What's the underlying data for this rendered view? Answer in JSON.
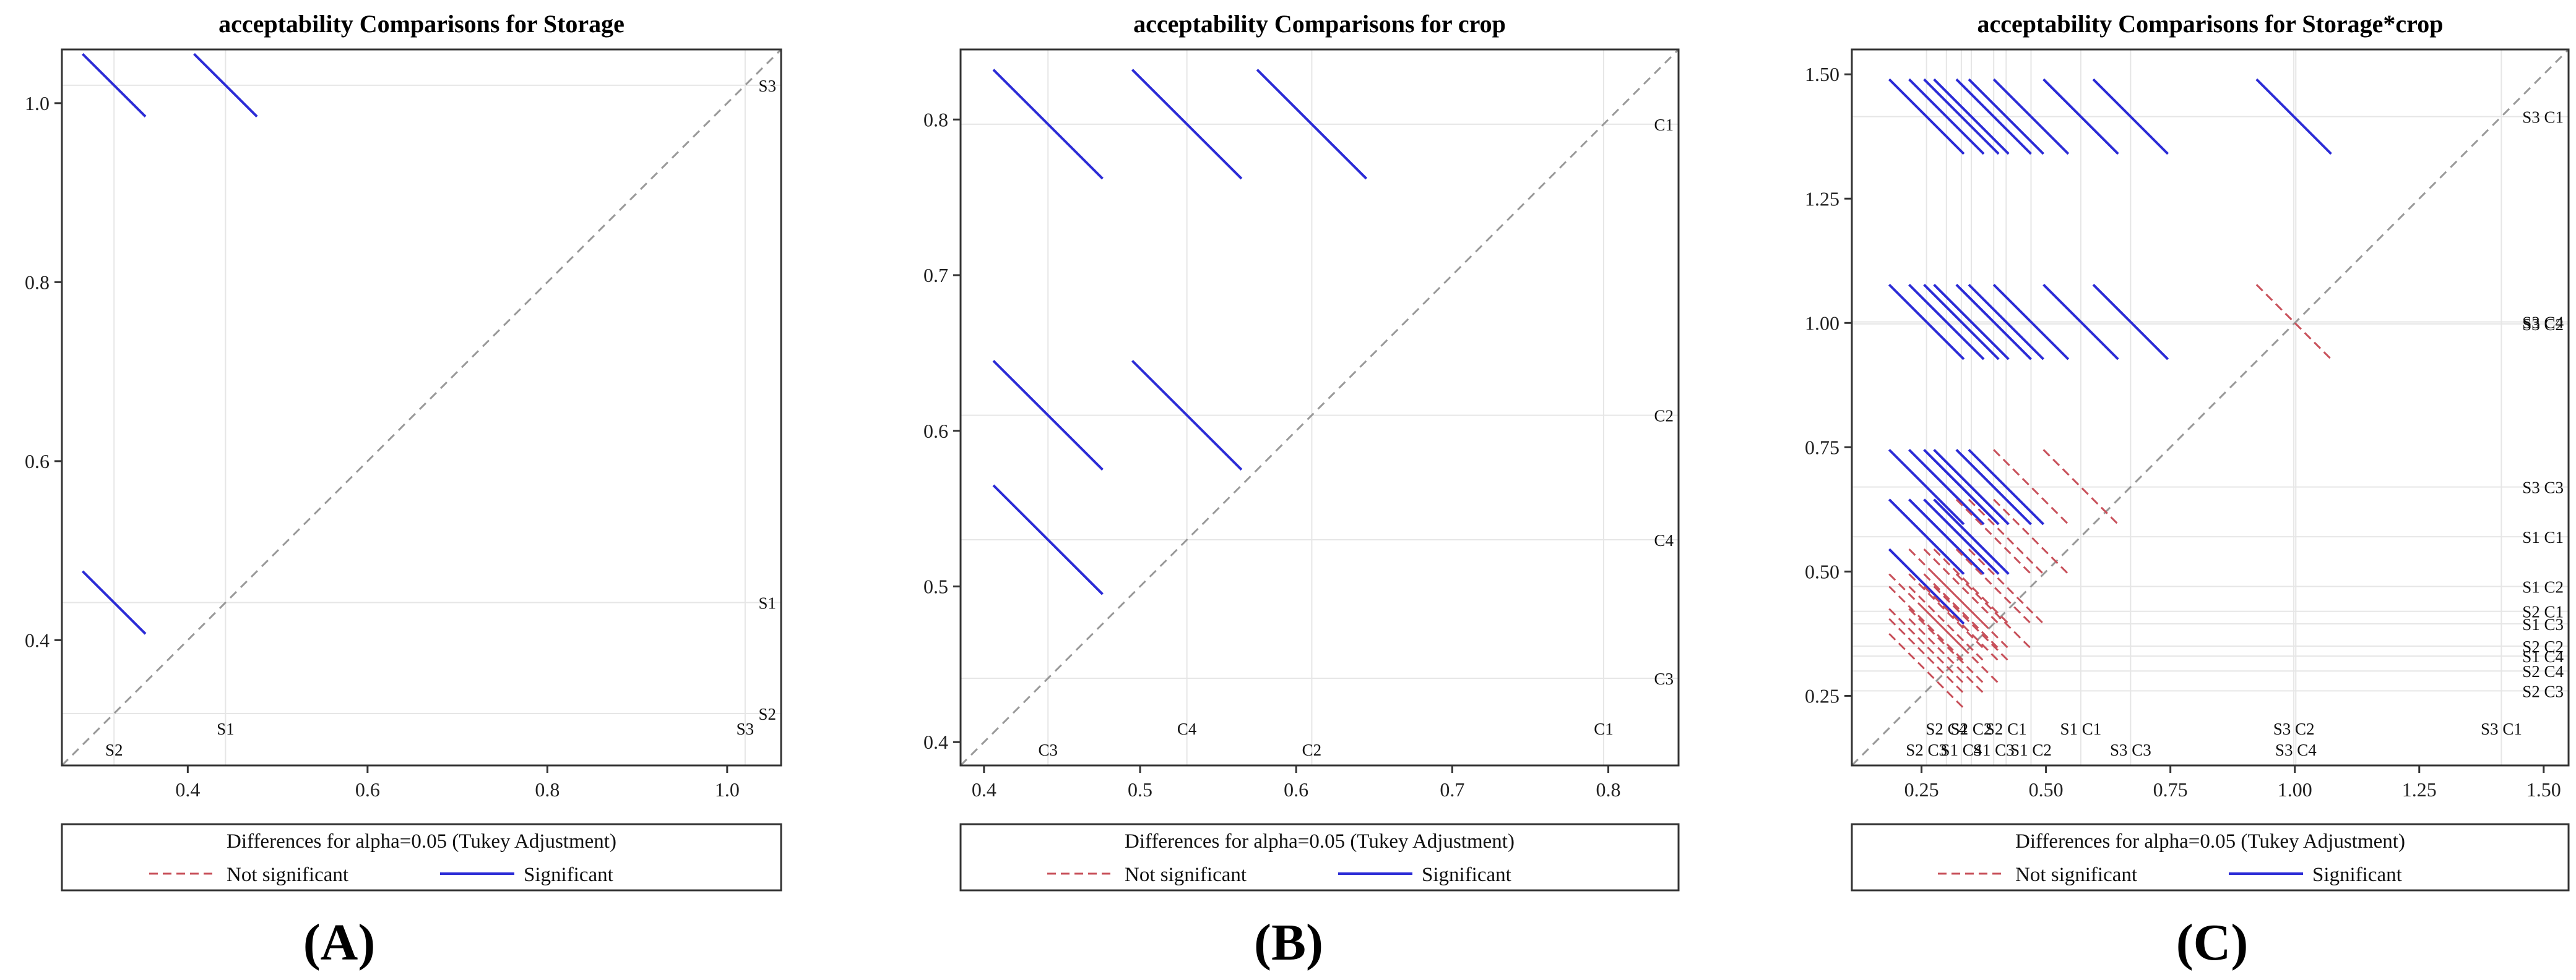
{
  "legend": {
    "title": "Differences for alpha=0.05 (Tukey Adjustment)",
    "not_significant": "Not significant",
    "significant": "Significant"
  },
  "colors": {
    "significant": "#2b2bd6",
    "not_significant": "#c8505a",
    "diagonal": "#999999",
    "refline": "#e6e6e6"
  },
  "chart_data": [
    {
      "type": "diffogram",
      "panel_label": "(A)",
      "title": "acceptability Comparisons for Storage",
      "xlim": [
        0.26,
        1.06
      ],
      "ylim": [
        0.26,
        1.06
      ],
      "xticks": [
        0.4,
        0.6,
        0.8,
        1.0
      ],
      "yticks": [
        0.4,
        0.6,
        0.8,
        1.0
      ],
      "tick_labels": [
        "0.4",
        "0.6",
        "0.8",
        "1.0"
      ],
      "levels": [
        {
          "name": "S1",
          "mean": 0.442
        },
        {
          "name": "S2",
          "mean": 0.318
        },
        {
          "name": "S3",
          "mean": 1.02
        }
      ],
      "comparisons": [
        {
          "a": "S1",
          "b": "S3",
          "significant": true,
          "half": 0.035
        },
        {
          "a": "S2",
          "b": "S3",
          "significant": true,
          "half": 0.035
        },
        {
          "a": "S2",
          "b": "S1",
          "significant": true,
          "half": 0.035
        }
      ]
    },
    {
      "type": "diffogram",
      "panel_label": "(B)",
      "title": "acceptability Comparisons for crop",
      "xlim": [
        0.385,
        0.845
      ],
      "ylim": [
        0.385,
        0.845
      ],
      "xticks": [
        0.4,
        0.5,
        0.6,
        0.7,
        0.8
      ],
      "yticks": [
        0.4,
        0.5,
        0.6,
        0.7,
        0.8
      ],
      "tick_labels": [
        "0.4",
        "0.5",
        "0.6",
        "0.7",
        "0.8"
      ],
      "levels": [
        {
          "name": "C1",
          "mean": 0.797
        },
        {
          "name": "C2",
          "mean": 0.61
        },
        {
          "name": "C4",
          "mean": 0.53
        },
        {
          "name": "C3",
          "mean": 0.441
        }
      ],
      "comparisons": [
        {
          "a": "C3",
          "b": "C1",
          "significant": true,
          "half": 0.035
        },
        {
          "a": "C4",
          "b": "C1",
          "significant": true,
          "half": 0.035
        },
        {
          "a": "C2",
          "b": "C1",
          "significant": true,
          "half": 0.035
        },
        {
          "a": "C3",
          "b": "C2",
          "significant": true,
          "half": 0.035
        },
        {
          "a": "C4",
          "b": "C2",
          "significant": true,
          "half": 0.035
        },
        {
          "a": "C3",
          "b": "C4",
          "significant": true,
          "half": 0.035
        }
      ]
    },
    {
      "type": "diffogram",
      "panel_label": "(C)",
      "title": "acceptability Comparisons for Storage*crop",
      "xlim": [
        0.11,
        1.55
      ],
      "ylim": [
        0.11,
        1.55
      ],
      "xticks": [
        0.25,
        0.5,
        0.75,
        1.0,
        1.25,
        1.5
      ],
      "yticks": [
        0.25,
        0.5,
        0.75,
        1.0,
        1.25,
        1.5
      ],
      "tick_labels": [
        "0.25",
        "0.50",
        "0.75",
        "1.00",
        "1.25",
        "1.50"
      ],
      "levels": [
        {
          "name": "S3 C1",
          "mean": 1.415
        },
        {
          "name": "S3 C4",
          "mean": 1.002
        },
        {
          "name": "S3 C2",
          "mean": 0.998
        },
        {
          "name": "S3 C3",
          "mean": 0.67
        },
        {
          "name": "S1 C1",
          "mean": 0.57
        },
        {
          "name": "S1 C2",
          "mean": 0.47
        },
        {
          "name": "S2 C1",
          "mean": 0.42
        },
        {
          "name": "S1 C3",
          "mean": 0.395
        },
        {
          "name": "S2 C2",
          "mean": 0.35
        },
        {
          "name": "S1 C4",
          "mean": 0.33
        },
        {
          "name": "S2 C4",
          "mean": 0.3
        },
        {
          "name": "S2 C3",
          "mean": 0.26
        }
      ],
      "comparisons": [
        {
          "a": "S2 C3",
          "b": "S3 C1",
          "significant": true,
          "half": 0.075
        },
        {
          "a": "S2 C4",
          "b": "S3 C1",
          "significant": true,
          "half": 0.075
        },
        {
          "a": "S1 C4",
          "b": "S3 C1",
          "significant": true,
          "half": 0.075
        },
        {
          "a": "S2 C2",
          "b": "S3 C1",
          "significant": true,
          "half": 0.075
        },
        {
          "a": "S1 C3",
          "b": "S3 C1",
          "significant": true,
          "half": 0.075
        },
        {
          "a": "S2 C1",
          "b": "S3 C1",
          "significant": true,
          "half": 0.075
        },
        {
          "a": "S1 C2",
          "b": "S3 C1",
          "significant": true,
          "half": 0.075
        },
        {
          "a": "S1 C1",
          "b": "S3 C1",
          "significant": true,
          "half": 0.075
        },
        {
          "a": "S3 C3",
          "b": "S3 C1",
          "significant": true,
          "half": 0.075
        },
        {
          "a": "S3 C2",
          "b": "S3 C1",
          "significant": true,
          "half": 0.075
        },
        {
          "a": "S2 C3",
          "b": "S3 C4",
          "significant": true,
          "half": 0.075
        },
        {
          "a": "S2 C4",
          "b": "S3 C4",
          "significant": true,
          "half": 0.075
        },
        {
          "a": "S1 C4",
          "b": "S3 C4",
          "significant": true,
          "half": 0.075
        },
        {
          "a": "S2 C2",
          "b": "S3 C4",
          "significant": true,
          "half": 0.075
        },
        {
          "a": "S1 C3",
          "b": "S3 C4",
          "significant": true,
          "half": 0.075
        },
        {
          "a": "S2 C1",
          "b": "S3 C4",
          "significant": true,
          "half": 0.075
        },
        {
          "a": "S1 C2",
          "b": "S3 C4",
          "significant": true,
          "half": 0.075
        },
        {
          "a": "S1 C1",
          "b": "S3 C4",
          "significant": true,
          "half": 0.075
        },
        {
          "a": "S3 C3",
          "b": "S3 C4",
          "significant": true,
          "half": 0.075
        },
        {
          "a": "S3 C2",
          "b": "S3 C4",
          "significant": false,
          "half": 0.075
        },
        {
          "a": "S2 C3",
          "b": "S3 C3",
          "significant": true,
          "half": 0.075
        },
        {
          "a": "S2 C4",
          "b": "S3 C3",
          "significant": true,
          "half": 0.075
        },
        {
          "a": "S1 C4",
          "b": "S3 C3",
          "significant": true,
          "half": 0.075
        },
        {
          "a": "S2 C2",
          "b": "S3 C3",
          "significant": true,
          "half": 0.075
        },
        {
          "a": "S1 C3",
          "b": "S3 C3",
          "significant": true,
          "half": 0.075
        },
        {
          "a": "S2 C1",
          "b": "S3 C3",
          "significant": true,
          "half": 0.075
        },
        {
          "a": "S1 C2",
          "b": "S3 C3",
          "significant": false,
          "half": 0.075
        },
        {
          "a": "S1 C1",
          "b": "S3 C3",
          "significant": false,
          "half": 0.075
        },
        {
          "a": "S2 C3",
          "b": "S1 C1",
          "significant": true,
          "half": 0.075
        },
        {
          "a": "S2 C4",
          "b": "S1 C1",
          "significant": true,
          "half": 0.075
        },
        {
          "a": "S1 C4",
          "b": "S1 C1",
          "significant": true,
          "half": 0.075
        },
        {
          "a": "S2 C2",
          "b": "S1 C1",
          "significant": true,
          "half": 0.075
        },
        {
          "a": "S1 C3",
          "b": "S1 C1",
          "significant": false,
          "half": 0.075
        },
        {
          "a": "S2 C1",
          "b": "S1 C1",
          "significant": false,
          "half": 0.075
        },
        {
          "a": "S1 C2",
          "b": "S1 C1",
          "significant": false,
          "half": 0.075
        },
        {
          "a": "S2 C3",
          "b": "S1 C2",
          "significant": true,
          "half": 0.075
        },
        {
          "a": "S2 C4",
          "b": "S1 C2",
          "significant": false,
          "half": 0.075
        },
        {
          "a": "S1 C4",
          "b": "S1 C2",
          "significant": false,
          "half": 0.075
        },
        {
          "a": "S2 C2",
          "b": "S1 C2",
          "significant": false,
          "half": 0.075
        },
        {
          "a": "S1 C3",
          "b": "S1 C2",
          "significant": false,
          "half": 0.075
        },
        {
          "a": "S2 C1",
          "b": "S1 C2",
          "significant": false,
          "half": 0.075
        },
        {
          "a": "S2 C3",
          "b": "S2 C1",
          "significant": false,
          "half": 0.075
        },
        {
          "a": "S2 C4",
          "b": "S2 C1",
          "significant": false,
          "half": 0.075
        },
        {
          "a": "S1 C4",
          "b": "S2 C1",
          "significant": false,
          "half": 0.075
        },
        {
          "a": "S2 C2",
          "b": "S2 C1",
          "significant": false,
          "half": 0.075
        },
        {
          "a": "S1 C3",
          "b": "S2 C1",
          "significant": false,
          "half": 0.075
        },
        {
          "a": "S2 C3",
          "b": "S1 C3",
          "significant": false,
          "half": 0.075
        },
        {
          "a": "S2 C4",
          "b": "S1 C3",
          "significant": false,
          "half": 0.075
        },
        {
          "a": "S1 C4",
          "b": "S1 C3",
          "significant": false,
          "half": 0.075
        },
        {
          "a": "S2 C2",
          "b": "S1 C3",
          "significant": false,
          "half": 0.075
        },
        {
          "a": "S2 C3",
          "b": "S2 C2",
          "significant": false,
          "half": 0.075
        },
        {
          "a": "S2 C4",
          "b": "S2 C2",
          "significant": false,
          "half": 0.075
        },
        {
          "a": "S1 C4",
          "b": "S2 C2",
          "significant": false,
          "half": 0.075
        },
        {
          "a": "S2 C3",
          "b": "S1 C4",
          "significant": false,
          "half": 0.075
        },
        {
          "a": "S2 C4",
          "b": "S1 C4",
          "significant": false,
          "half": 0.075
        },
        {
          "a": "S2 C3",
          "b": "S2 C4",
          "significant": false,
          "half": 0.075
        }
      ]
    }
  ]
}
